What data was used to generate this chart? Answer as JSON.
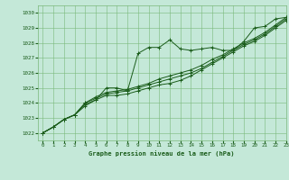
{
  "title": "Graphe pression niveau de la mer (hPa)",
  "bg_color": "#c4e8d8",
  "grid_color": "#7ab87a",
  "line_color": "#1a5c1a",
  "xlim": [
    -0.5,
    23
  ],
  "ylim": [
    1021.5,
    1030.5
  ],
  "yticks": [
    1022,
    1023,
    1024,
    1025,
    1026,
    1027,
    1028,
    1029,
    1030
  ],
  "xticks": [
    0,
    1,
    2,
    3,
    4,
    5,
    6,
    7,
    8,
    9,
    10,
    11,
    12,
    13,
    14,
    15,
    16,
    17,
    18,
    19,
    20,
    21,
    22,
    23
  ],
  "series": [
    [
      1022.0,
      1022.4,
      1022.9,
      1023.2,
      1023.8,
      1024.2,
      1025.0,
      1025.0,
      1024.8,
      1027.3,
      1027.7,
      1027.7,
      1028.2,
      1027.6,
      1027.5,
      1027.6,
      1027.7,
      1027.5,
      1027.5,
      1028.1,
      1029.0,
      1029.1,
      1029.6,
      1029.7
    ],
    [
      1022.0,
      1022.4,
      1022.9,
      1023.2,
      1023.9,
      1024.2,
      1024.5,
      1024.5,
      1024.6,
      1024.8,
      1025.0,
      1025.2,
      1025.3,
      1025.5,
      1025.8,
      1026.2,
      1026.6,
      1027.0,
      1027.4,
      1027.8,
      1028.1,
      1028.5,
      1029.0,
      1029.5
    ],
    [
      1022.0,
      1022.4,
      1022.9,
      1023.2,
      1024.0,
      1024.3,
      1024.6,
      1024.7,
      1024.8,
      1025.0,
      1025.2,
      1025.4,
      1025.6,
      1025.8,
      1026.0,
      1026.3,
      1026.7,
      1027.1,
      1027.5,
      1027.9,
      1028.2,
      1028.6,
      1029.1,
      1029.6
    ],
    [
      1022.0,
      1022.4,
      1022.9,
      1023.2,
      1024.0,
      1024.4,
      1024.7,
      1024.8,
      1024.9,
      1025.1,
      1025.3,
      1025.6,
      1025.8,
      1026.0,
      1026.2,
      1026.5,
      1026.9,
      1027.2,
      1027.6,
      1028.0,
      1028.3,
      1028.7,
      1029.2,
      1029.7
    ]
  ]
}
